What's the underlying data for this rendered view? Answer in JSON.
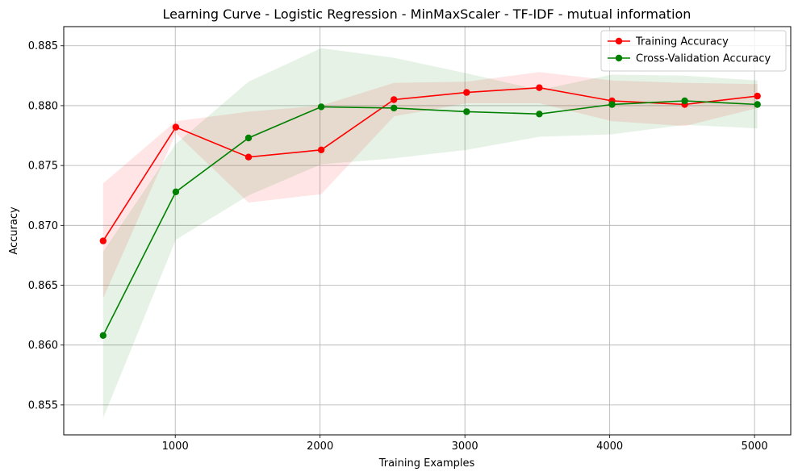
{
  "chart_data": {
    "type": "line",
    "title": "Learning Curve - Logistic Regression - MinMaxScaler - TF-IDF - mutual information",
    "xlabel": "Training Examples",
    "ylabel": "Accuracy",
    "xlim": [
      230,
      5250
    ],
    "ylim": [
      0.8525,
      0.8866
    ],
    "xticks": [
      1000,
      2000,
      3000,
      4000,
      5000
    ],
    "yticks": [
      0.855,
      0.86,
      0.865,
      0.87,
      0.875,
      0.88,
      0.885
    ],
    "ytick_labels": [
      "0.855",
      "0.860",
      "0.865",
      "0.870",
      "0.875",
      "0.880",
      "0.885"
    ],
    "grid": true,
    "legend_position": "top-right",
    "x": [
      502,
      1004,
      1506,
      2008,
      2510,
      3012,
      3514,
      4016,
      4518,
      5020
    ],
    "series": [
      {
        "name": "Training Accuracy",
        "color": "#ff0000",
        "fill_color": "#ff0000",
        "values": [
          0.8687,
          0.8782,
          0.8757,
          0.8763,
          0.8805,
          0.8811,
          0.8815,
          0.8804,
          0.8801,
          0.8808
        ],
        "upper": [
          0.8735,
          0.8787,
          0.8795,
          0.88,
          0.8819,
          0.882,
          0.8828,
          0.8821,
          0.8819,
          0.8818
        ],
        "lower": [
          0.8639,
          0.8777,
          0.8719,
          0.8726,
          0.8791,
          0.8802,
          0.8802,
          0.8787,
          0.8783,
          0.8798
        ]
      },
      {
        "name": "Cross-Validation Accuracy",
        "color": "#008000",
        "fill_color": "#008000",
        "values": [
          0.8608,
          0.8728,
          0.8773,
          0.8799,
          0.8798,
          0.8795,
          0.8793,
          0.8801,
          0.8804,
          0.8801
        ],
        "upper": [
          0.8678,
          0.8768,
          0.882,
          0.8848,
          0.884,
          0.8827,
          0.8813,
          0.8826,
          0.8825,
          0.8821
        ],
        "lower": [
          0.8539,
          0.8688,
          0.8725,
          0.8751,
          0.8756,
          0.8763,
          0.8774,
          0.8776,
          0.8784,
          0.8781
        ]
      }
    ]
  }
}
